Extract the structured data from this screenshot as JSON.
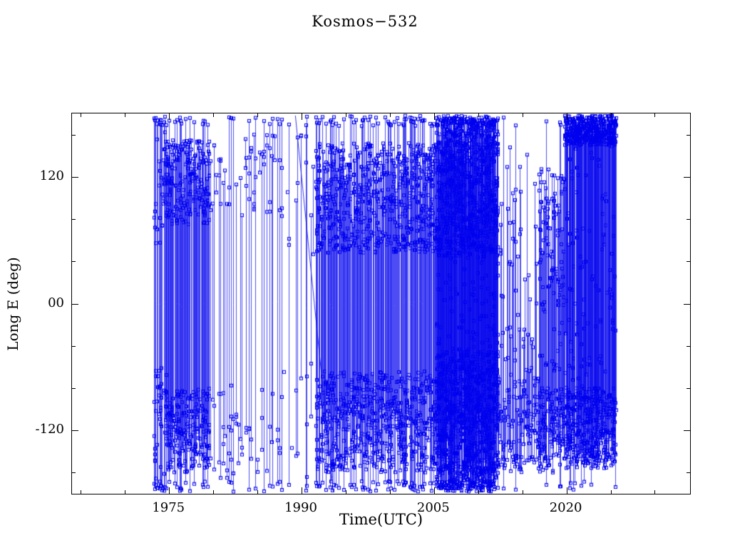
{
  "page": {
    "background": "#ffffff"
  },
  "chart_data": {
    "type": "scatter",
    "title": "Kosmos−532",
    "xlabel": "Time(UTC)",
    "ylabel": "Long E (deg)",
    "x_range": [
      1964,
      2034
    ],
    "y_range": [
      -180,
      180
    ],
    "x_ticks": [
      {
        "value": 1975,
        "label": "1975"
      },
      {
        "value": 1990,
        "label": "1990"
      },
      {
        "value": 2005,
        "label": "2005"
      },
      {
        "value": 2020,
        "label": "2020"
      }
    ],
    "x_minor_step": 5,
    "y_ticks": [
      {
        "value": 120,
        "label": "120"
      },
      {
        "value": 0,
        "label": "00"
      },
      {
        "value": -120,
        "label": "-120"
      }
    ],
    "y_minor_step": 40,
    "color": "#0000ee",
    "axis_color": "#000000",
    "marker": "open-square",
    "marker_size": 4,
    "seed": 7,
    "data_start": 1973.3,
    "data_end": 2025.6,
    "epochs": [
      {
        "from": 1973.3,
        "to": 1974.6,
        "cols_per_year": 10,
        "min_pts": 3,
        "max_pts": 6,
        "full_line": 0.7,
        "bands": [
          {
            "c": 110,
            "s": 55,
            "w": 0.5
          },
          {
            "c": -115,
            "s": 55,
            "w": 0.5
          }
        ]
      },
      {
        "from": 1974.6,
        "to": 1979.6,
        "cols_per_year": 16,
        "min_pts": 3,
        "max_pts": 8,
        "full_line": 0.18,
        "bands": [
          {
            "c": 115,
            "s": 40,
            "w": 0.52
          },
          {
            "c": -120,
            "s": 40,
            "w": 0.48
          }
        ]
      },
      {
        "from": 1979.6,
        "to": 1983.0,
        "cols_per_year": 4,
        "min_pts": 2,
        "max_pts": 5,
        "full_line": 0.3,
        "bands": [
          {
            "c": 120,
            "s": 35,
            "w": 0.35
          },
          {
            "c": -120,
            "s": 45,
            "w": 0.65
          }
        ]
      },
      {
        "from": 1983.0,
        "to": 1988.0,
        "cols_per_year": 4,
        "min_pts": 2,
        "max_pts": 5,
        "full_line": 0.3,
        "bands": [
          {
            "c": 120,
            "s": 40,
            "w": 0.6
          },
          {
            "c": -120,
            "s": 40,
            "w": 0.4
          }
        ]
      },
      {
        "from": 1988.0,
        "to": 1991.6,
        "cols_per_year": 3,
        "min_pts": 1,
        "max_pts": 3,
        "full_line": 0.25,
        "bands": [
          {
            "c": 100,
            "s": 60,
            "w": 0.5
          },
          {
            "c": -110,
            "s": 55,
            "w": 0.5
          }
        ]
      },
      {
        "from": 1991.6,
        "to": 2005.3,
        "cols_per_year": 15,
        "min_pts": 3,
        "max_pts": 9,
        "full_line": 0.2,
        "bands": [
          {
            "c": 100,
            "s": 52,
            "w": 0.5
          },
          {
            "c": -112,
            "s": 48,
            "w": 0.5
          }
        ]
      },
      {
        "from": 2005.3,
        "to": 2012.2,
        "cols_per_year": 30,
        "min_pts": 5,
        "max_pts": 12,
        "full_line": 0.45,
        "bands": [
          {
            "c": 110,
            "s": 65,
            "w": 0.4
          },
          {
            "c": -110,
            "s": 65,
            "w": 0.4
          },
          {
            "c": 0,
            "s": 170,
            "w": 0.2
          }
        ]
      },
      {
        "from": 2012.2,
        "to": 2016.8,
        "cols_per_year": 10,
        "min_pts": 2,
        "max_pts": 6,
        "full_line": 0.08,
        "bands": [
          {
            "c": -115,
            "s": 45,
            "w": 0.7
          },
          {
            "c": 40,
            "s": 110,
            "w": 0.3
          }
        ]
      },
      {
        "from": 2016.8,
        "to": 2019.8,
        "cols_per_year": 16,
        "min_pts": 3,
        "max_pts": 8,
        "full_line": 0.1,
        "bands": [
          {
            "c": -120,
            "s": 40,
            "w": 0.55
          },
          {
            "c": 30,
            "s": 100,
            "w": 0.45
          }
        ]
      },
      {
        "from": 2019.8,
        "to": 2025.6,
        "cols_per_year": 24,
        "min_pts": 4,
        "max_pts": 9,
        "full_line": 0.08,
        "bands": [
          {
            "c": -118,
            "s": 38,
            "w": 0.42
          },
          {
            "c": 164,
            "s": 14,
            "w": 0.46
          },
          {
            "c": 30,
            "s": 120,
            "w": 0.12
          }
        ]
      }
    ],
    "drift_line": {
      "t1": 1989.3,
      "v1": 178,
      "t2": 1993.6,
      "v2": -178
    }
  }
}
